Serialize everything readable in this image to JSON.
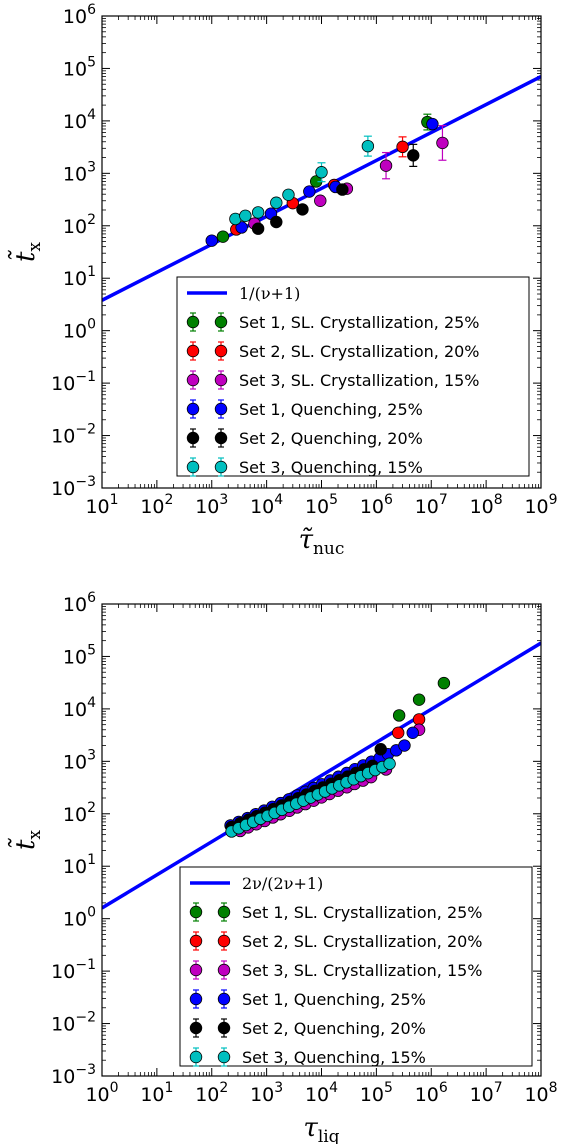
{
  "chart_data": [
    {
      "type": "scatter",
      "xscale": "log",
      "yscale": "log",
      "xlim": [
        10,
        1000000000
      ],
      "ylim": [
        0.001,
        1000000
      ],
      "x_ticks": [
        10,
        100,
        1000,
        10000,
        100000,
        1000000,
        10000000,
        100000000,
        1000000000
      ],
      "x_tick_labels": [
        "10^1",
        "10^2",
        "10^3",
        "10^4",
        "10^5",
        "10^6",
        "10^7",
        "10^8",
        "10^9"
      ],
      "y_ticks": [
        0.001,
        0.01,
        0.1,
        1,
        10,
        100,
        1000,
        10000,
        100000,
        1000000
      ],
      "y_tick_labels": [
        "10^-3",
        "10^-2",
        "10^-1",
        "10^0",
        "10^1",
        "10^2",
        "10^3",
        "10^4",
        "10^5",
        "10^6"
      ],
      "xlabel": "τ̃nuc",
      "ylabel": "t̃x",
      "legend_position": "lower-right",
      "line": {
        "name": "1/(ν+1)",
        "color": "#0000ff",
        "points": [
          [
            10,
            3.8
          ],
          [
            1000000000,
            70000
          ]
        ]
      },
      "series": [
        {
          "name": "Set 1, SL. Crystallization, 25%",
          "color": "#008000",
          "x": [
            1600,
            80000,
            8500000
          ],
          "y": [
            62,
            700,
            9500
          ],
          "yerr": [
            0,
            0,
            0.15
          ]
        },
        {
          "name": "Set 2, SL. Crystallization, 20%",
          "color": "#ff0000",
          "x": [
            2800,
            30000,
            170000,
            3000000
          ],
          "y": [
            85,
            270,
            600,
            3200
          ],
          "yerr": [
            0,
            0,
            0,
            0.19
          ]
        },
        {
          "name": "Set 3, SL. Crystallization, 15%",
          "color": "#bf00bf",
          "x": [
            6000,
            95000,
            290000,
            1500000,
            16000000
          ],
          "y": [
            110,
            300,
            510,
            1400,
            3800
          ],
          "yerr": [
            0,
            0,
            0,
            0.25,
            0.33
          ]
        },
        {
          "name": "Set 1, Quenching, 25%",
          "color": "#0000ff",
          "x": [
            1000,
            3500,
            12000,
            60000,
            180000,
            10500000
          ],
          "y": [
            52,
            93,
            170,
            450,
            550,
            8700
          ],
          "yerr": [
            0,
            0,
            0,
            0,
            0,
            0
          ]
        },
        {
          "name": "Set 2, Quenching, 20%",
          "color": "#000000",
          "x": [
            7000,
            15000,
            45000,
            240000,
            4700000
          ],
          "y": [
            88,
            118,
            205,
            490,
            2200
          ],
          "yerr": [
            0,
            0,
            0,
            0,
            0.21
          ]
        },
        {
          "name": "Set 3, Quenching, 15%",
          "color": "#00bfbf",
          "x": [
            2700,
            4100,
            7000,
            15000,
            25000,
            100000,
            700000
          ],
          "y": [
            135,
            155,
            180,
            275,
            390,
            1050,
            3300
          ],
          "yerr": [
            0,
            0,
            0,
            0,
            0,
            0.18,
            0.19
          ]
        }
      ]
    },
    {
      "type": "scatter",
      "xscale": "log",
      "yscale": "log",
      "xlim": [
        1,
        100000000
      ],
      "ylim": [
        0.001,
        1000000
      ],
      "x_ticks": [
        1,
        10,
        100,
        1000,
        10000,
        100000,
        1000000,
        10000000,
        100000000
      ],
      "x_tick_labels": [
        "10^0",
        "10^1",
        "10^2",
        "10^3",
        "10^4",
        "10^5",
        "10^6",
        "10^7",
        "10^8"
      ],
      "y_ticks": [
        0.001,
        0.01,
        0.1,
        1,
        10,
        100,
        1000,
        10000,
        100000,
        1000000
      ],
      "y_tick_labels": [
        "10^-3",
        "10^-2",
        "10^-1",
        "10^0",
        "10^1",
        "10^2",
        "10^3",
        "10^4",
        "10^5",
        "10^6"
      ],
      "xlabel": "τliq",
      "ylabel": "t̃x",
      "legend_position": "lower-right",
      "line": {
        "name": "2ν/(2ν+1)",
        "color": "#0000ff",
        "points": [
          [
            1,
            1.6
          ],
          [
            100000000,
            180000
          ]
        ]
      },
      "series": [
        {
          "name": "Set 1, SL. Crystallization, 25%",
          "color": "#008000",
          "x": [
            260000,
            600000,
            1700000
          ],
          "y": [
            7500,
            15000,
            31000
          ],
          "yerr": [
            0,
            0,
            0
          ]
        },
        {
          "name": "Set 2, SL. Crystallization, 20%",
          "color": "#ff0000",
          "x": [
            250000,
            600000
          ],
          "y": [
            3500,
            6300
          ],
          "yerr": [
            0,
            0
          ]
        },
        {
          "name": "Set 3, SL. Crystallization, 15%",
          "color": "#bf00bf",
          "x": [
            330,
            460,
            650,
            920,
            1300,
            1800,
            2600,
            3600,
            5100,
            7200,
            10000,
            14000,
            20000,
            29000,
            40000,
            57000,
            80000,
            150000,
            600000
          ],
          "y": [
            47,
            55,
            63,
            73,
            85,
            98,
            114,
            132,
            153,
            178,
            205,
            238,
            275,
            320,
            370,
            430,
            500,
            700,
            4000
          ],
          "yerr": []
        },
        {
          "name": "Set 1, Quenching, 25%",
          "color": "#0000ff",
          "x": [
            220,
            310,
            450,
            630,
            900,
            1270,
            1800,
            2550,
            3600,
            5100,
            7200,
            10200,
            14400,
            20400,
            28800,
            40700,
            57600,
            81400,
            115000,
            163000,
            230000,
            325000,
            460000
          ],
          "y": [
            60,
            70,
            83,
            98,
            115,
            136,
            160,
            189,
            223,
            263,
            310,
            365,
            431,
            509,
            600,
            708,
            835,
            985,
            1160,
            1370,
            1620,
            2000,
            3500
          ],
          "yerr": []
        },
        {
          "name": "Set 2, Quenching, 20%",
          "color": "#000000",
          "x": [
            230,
            330,
            470,
            660,
            940,
            1330,
            1880,
            2660,
            3760,
            5320,
            7520,
            10600,
            15000,
            21200,
            30000,
            42500,
            60000,
            85000,
            120000
          ],
          "y": [
            56,
            66,
            77,
            90,
            105,
            123,
            144,
            169,
            198,
            232,
            272,
            318,
            373,
            437,
            512,
            600,
            703,
            823,
            1700
          ],
          "yerr": []
        },
        {
          "name": "Set 3, Quenching, 15%",
          "color": "#00bfbf",
          "x": [
            230,
            310,
            420,
            570,
            770,
            1040,
            1400,
            1900,
            2570,
            3470,
            4690,
            6340,
            8570,
            11600,
            15600,
            21100,
            28600,
            38600,
            52200,
            70500,
            95300,
            129000,
            174000
          ],
          "y": [
            46,
            53,
            61,
            70,
            80,
            91,
            104,
            119,
            136,
            156,
            178,
            204,
            233,
            266,
            304,
            348,
            398,
            455,
            520,
            595,
            680,
            780,
            900
          ],
          "yerr": []
        }
      ]
    }
  ]
}
